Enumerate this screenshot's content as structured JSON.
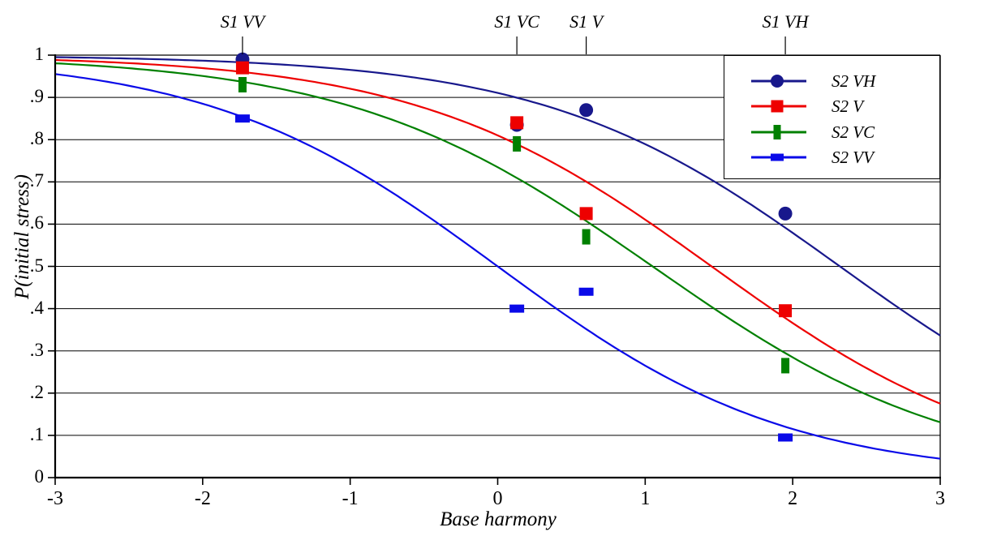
{
  "chart_data": {
    "type": "line",
    "subtype": "fitted-logistic-curves-with-scatter-markers",
    "title": "",
    "xlabel": "Base harmony",
    "ylabel": "P(initial stress)",
    "xlim": [
      -3,
      3
    ],
    "ylim": [
      0,
      1
    ],
    "background": "#ffffff",
    "axis_color": "#000000",
    "grid": {
      "horizontal": true,
      "vertical": false
    },
    "x_ticks": {
      "values": [
        -3,
        -2,
        -1,
        0,
        1,
        2,
        3
      ],
      "labels": [
        "-3",
        "-2",
        "-1",
        "0",
        "1",
        "2",
        "3"
      ]
    },
    "y_ticks": {
      "values": [
        0,
        0.1,
        0.2,
        0.3,
        0.4,
        0.5,
        0.6,
        0.7,
        0.8,
        0.9,
        1
      ],
      "labels": [
        "0",
        ".1",
        ".2",
        ".3",
        ".4",
        ".5",
        ".6",
        ".7",
        ".8",
        ".9",
        "1"
      ]
    },
    "top_markers": [
      {
        "label": "S1 VV",
        "x": -1.73
      },
      {
        "label": "S1 VC",
        "x": 0.13
      },
      {
        "label": "S1 V",
        "x": 0.6
      },
      {
        "label": "S1 VH",
        "x": 1.95
      }
    ],
    "legend": {
      "position": "top-right",
      "border": true
    },
    "series": [
      {
        "name": "S2 VH",
        "color": "#18188c",
        "marker": "circle",
        "points": [
          {
            "x": -1.73,
            "y": 0.99
          },
          {
            "x": 0.13,
            "y": 0.835
          },
          {
            "x": 0.6,
            "y": 0.87
          },
          {
            "x": 1.95,
            "y": 0.625
          }
        ],
        "curve_fit": {
          "type": "logistic-decreasing",
          "k": 1.0,
          "x0": 2.32
        }
      },
      {
        "name": "S2 V",
        "color": "#ee0000",
        "marker": "square",
        "points": [
          {
            "x": -1.73,
            "y": 0.97
          },
          {
            "x": 0.13,
            "y": 0.84
          },
          {
            "x": 0.6,
            "y": 0.625
          },
          {
            "x": 1.95,
            "y": 0.395
          }
        ],
        "curve_fit": {
          "type": "logistic-decreasing",
          "k": 1.0,
          "x0": 1.45
        }
      },
      {
        "name": "S2 VC",
        "color": "#008000",
        "marker": "tall-rect",
        "points": [
          {
            "x": -1.73,
            "y": 0.93
          },
          {
            "x": 0.13,
            "y": 0.79
          },
          {
            "x": 0.6,
            "y": 0.57
          },
          {
            "x": 1.95,
            "y": 0.265
          }
        ],
        "curve_fit": {
          "type": "logistic-decreasing",
          "k": 0.97,
          "x0": 1.05
        }
      },
      {
        "name": "S2 VV",
        "color": "#0a0ae8",
        "marker": "wide-rect",
        "points": [
          {
            "x": -1.73,
            "y": 0.85
          },
          {
            "x": 0.13,
            "y": 0.4
          },
          {
            "x": 0.6,
            "y": 0.44
          },
          {
            "x": 1.95,
            "y": 0.095
          }
        ],
        "curve_fit": {
          "type": "logistic-decreasing",
          "k": 1.02,
          "x0": 0.0
        }
      }
    ]
  }
}
